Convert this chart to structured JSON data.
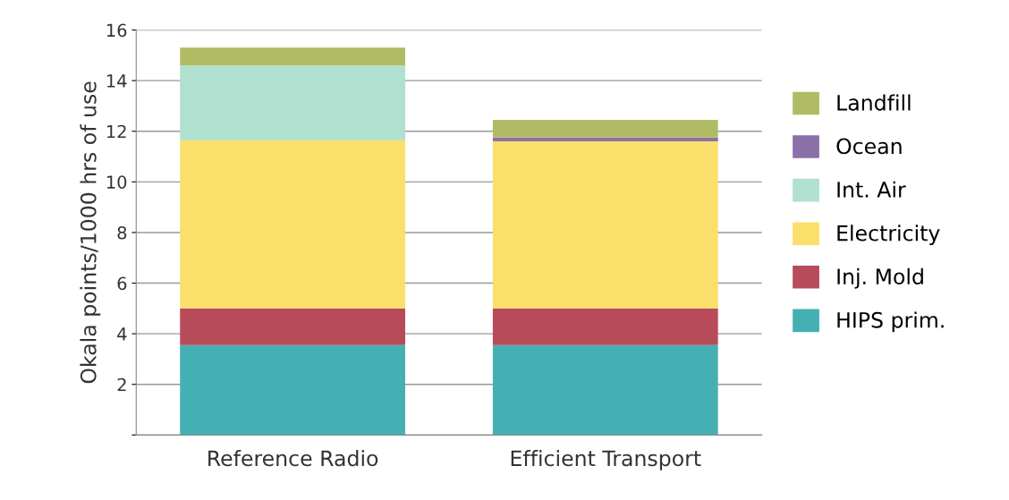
{
  "chart_data": {
    "type": "bar",
    "stacked": true,
    "ylabel": "Okala points/1000 hrs of use",
    "categories": [
      "Reference Radio",
      "Efficient Transport"
    ],
    "series": [
      {
        "name": "HIPS prim.",
        "color": "#45b0b3",
        "values": [
          3.55,
          3.55
        ]
      },
      {
        "name": "Inj. Mold",
        "color": "#b84b5a",
        "values": [
          1.45,
          1.45
        ]
      },
      {
        "name": "Electricity",
        "color": "#fbdf6b",
        "values": [
          6.65,
          6.6
        ]
      },
      {
        "name": "Int. Air",
        "color": "#b0e0d0",
        "values": [
          2.95,
          0
        ]
      },
      {
        "name": "Ocean",
        "color": "#8a72a8",
        "values": [
          0,
          0.15
        ]
      },
      {
        "name": "Landfill",
        "color": "#b1bb63",
        "values": [
          0.7,
          0.7
        ]
      }
    ],
    "ylim": [
      0,
      16
    ],
    "yticks": [
      {
        "value": 0,
        "label": null
      },
      2,
      4,
      6,
      8,
      10,
      12,
      14,
      16
    ],
    "grid": "y",
    "legend": "right"
  }
}
